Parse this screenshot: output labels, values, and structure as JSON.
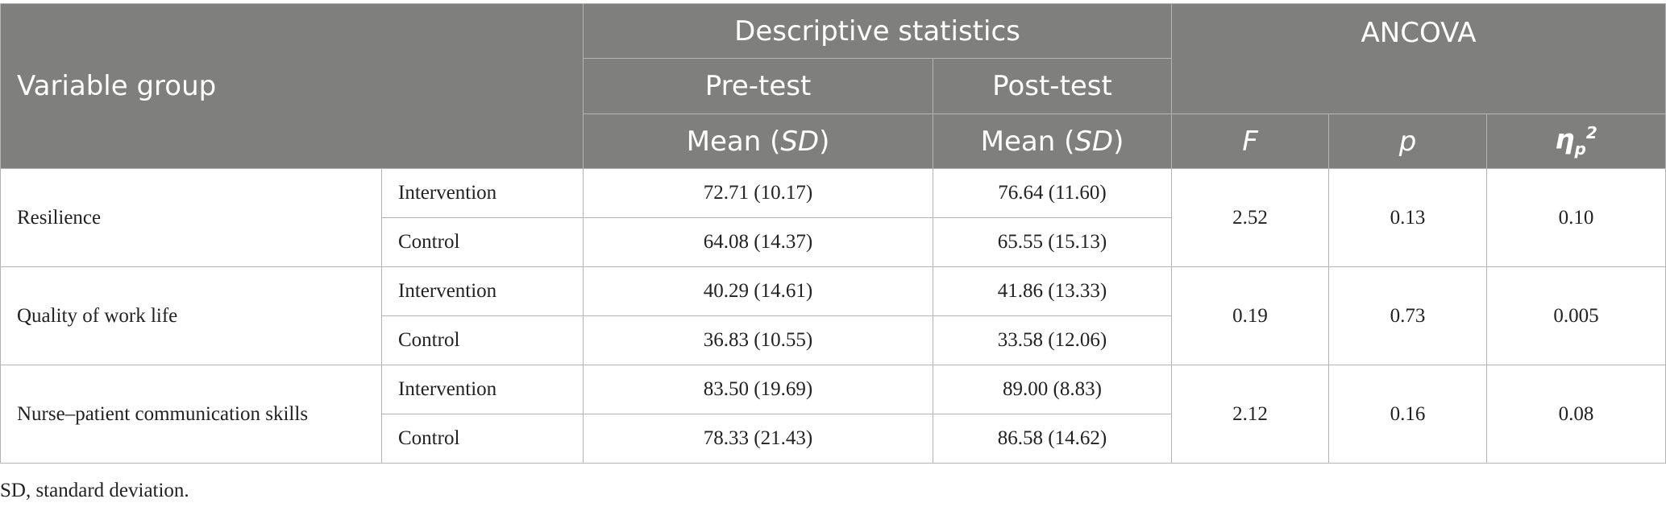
{
  "header": {
    "variable_group": "Variable group",
    "descriptive": "Descriptive statistics",
    "ancova": "ANCOVA",
    "pre_test": "Pre-test",
    "post_test": "Post-test",
    "mean_label": "Mean (",
    "sd_label": "SD",
    "close_paren": ")",
    "f_label": "F",
    "p_label": "p",
    "eta_symbol": "η",
    "eta_sub": "p",
    "eta_sup": "2"
  },
  "rows": [
    {
      "variable": "Resilience",
      "groups": [
        {
          "group": "Intervention",
          "pre": "72.71 (10.17)",
          "post": "76.64 (11.60)"
        },
        {
          "group": "Control",
          "pre": "64.08 (14.37)",
          "post": "65.55 (15.13)"
        }
      ],
      "F": "2.52",
      "p": "0.13",
      "eta": "0.10"
    },
    {
      "variable": "Quality of work life",
      "groups": [
        {
          "group": "Intervention",
          "pre": "40.29 (14.61)",
          "post": "41.86 (13.33)"
        },
        {
          "group": "Control",
          "pre": "36.83 (10.55)",
          "post": "33.58 (12.06)"
        }
      ],
      "F": "0.19",
      "p": "0.73",
      "eta": "0.005"
    },
    {
      "variable": "Nurse–patient communication skills",
      "groups": [
        {
          "group": "Intervention",
          "pre": "83.50 (19.69)",
          "post": "89.00 (8.83)"
        },
        {
          "group": "Control",
          "pre": "78.33 (21.43)",
          "post": "86.58 (14.62)"
        }
      ],
      "F": "2.12",
      "p": "0.16",
      "eta": "0.08"
    }
  ],
  "footnote": "SD, standard deviation."
}
